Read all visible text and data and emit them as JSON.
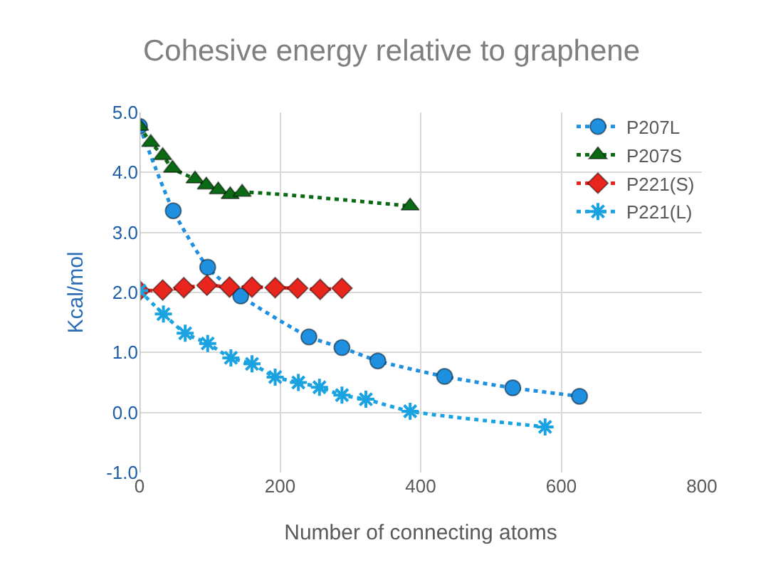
{
  "chart_data": {
    "type": "line",
    "title": "Cohesive energy relative to graphene",
    "xlabel": "Number of connecting atoms",
    "ylabel": "Kcal/mol",
    "xlim": [
      0,
      800
    ],
    "xticks": [
      0,
      200,
      400,
      600,
      800
    ],
    "ylim": [
      -1,
      5
    ],
    "yticks": [
      {
        "value": -1,
        "label": "-1.0"
      },
      {
        "value": 0,
        "label": "0.0"
      },
      {
        "value": 1,
        "label": "1.0"
      },
      {
        "value": 2,
        "label": "2.0"
      },
      {
        "value": 3,
        "label": "3.0"
      },
      {
        "value": 4,
        "label": "4.0"
      },
      {
        "value": 5,
        "label": "5.0"
      }
    ],
    "grid": true,
    "legend": "top right",
    "line_style": "dotted",
    "series": [
      {
        "name": "P207L",
        "color": "#1f8fe0",
        "marker": "circle",
        "x": [
          0,
          48,
          97,
          144,
          241,
          288,
          339,
          434,
          531,
          626
        ],
        "values": [
          4.77,
          3.36,
          2.42,
          1.94,
          1.26,
          1.08,
          0.86,
          0.6,
          0.41,
          0.27
        ]
      },
      {
        "name": "P207S",
        "color": "#0b6b14",
        "marker": "triangle",
        "x": [
          0,
          16,
          33,
          47,
          79,
          95,
          112,
          129,
          146,
          385
        ],
        "values": [
          4.77,
          4.5,
          4.28,
          4.07,
          3.89,
          3.79,
          3.71,
          3.63,
          3.67,
          3.44
        ]
      },
      {
        "name": "P221(S)",
        "color": "#e8261e",
        "marker": "diamond",
        "x": [
          0,
          33,
          63,
          96,
          128,
          160,
          193,
          225,
          257,
          288
        ],
        "values": [
          2.03,
          2.04,
          2.08,
          2.12,
          2.09,
          2.09,
          2.08,
          2.07,
          2.05,
          2.07
        ]
      },
      {
        "name": "P221(L)",
        "color": "#1aa3e0",
        "marker": "cross",
        "x": [
          0,
          34,
          65,
          97,
          130,
          160,
          193,
          226,
          256,
          288,
          322,
          385,
          577
        ],
        "values": [
          2.03,
          1.64,
          1.32,
          1.15,
          0.91,
          0.81,
          0.59,
          0.5,
          0.42,
          0.29,
          0.22,
          0.02,
          -0.24
        ]
      }
    ]
  }
}
